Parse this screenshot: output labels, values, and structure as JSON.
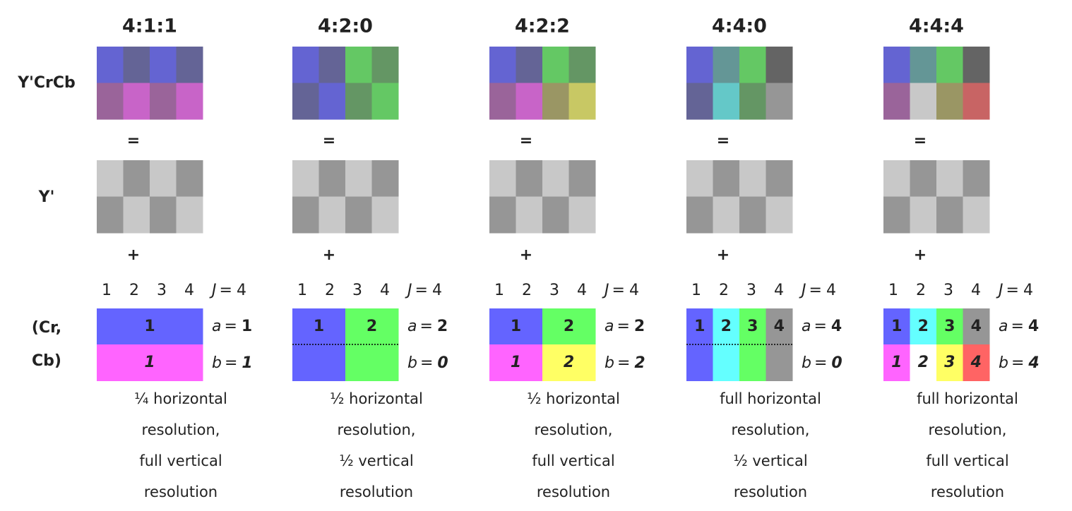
{
  "row_labels": {
    "ycrcb": "Y'CrCb",
    "y": "Y'",
    "crcb": [
      "(Cr,",
      "Cb)"
    ]
  },
  "operators": {
    "equals": "=",
    "plus": "+"
  },
  "columns": [
    {
      "title": "4:1:1",
      "ycrcb_colors": [
        [
          "#6464d2",
          "#646496",
          "#6464d2",
          "#646496"
        ],
        [
          "#9a649a",
          "#c864c8",
          "#9a649a",
          "#c864c8"
        ]
      ],
      "y_colors": [
        [
          "#c8c8c8",
          "#969696",
          "#c8c8c8",
          "#969696"
        ],
        [
          "#969696",
          "#c8c8c8",
          "#969696",
          "#c8c8c8"
        ]
      ],
      "indices": [
        "1",
        "2",
        "3",
        "4"
      ],
      "j": {
        "symbol": "J",
        "value": "4"
      },
      "a": {
        "symbol": "a",
        "value": "1"
      },
      "b": {
        "symbol": "b",
        "value": "1"
      },
      "cr": [
        {
          "label": "1",
          "color": "#6464ff"
        }
      ],
      "cb": [
        {
          "label": "1",
          "color": "#ff64ff"
        }
      ],
      "dotted": false,
      "caption": [
        "¼ horizontal",
        "resolution,",
        "full vertical",
        "resolution"
      ]
    },
    {
      "title": "4:2:0",
      "ycrcb_colors": [
        [
          "#6464d2",
          "#646496",
          "#64c864",
          "#649664"
        ],
        [
          "#646496",
          "#6464d2",
          "#649664",
          "#64c864"
        ]
      ],
      "y_colors": [
        [
          "#c8c8c8",
          "#969696",
          "#c8c8c8",
          "#969696"
        ],
        [
          "#969696",
          "#c8c8c8",
          "#969696",
          "#c8c8c8"
        ]
      ],
      "indices": [
        "1",
        "2",
        "3",
        "4"
      ],
      "j": {
        "symbol": "J",
        "value": "4"
      },
      "a": {
        "symbol": "a",
        "value": "2"
      },
      "b": {
        "symbol": "b",
        "value": "0"
      },
      "cr": [
        {
          "label": "1",
          "color": "#6464ff"
        },
        {
          "label": "2",
          "color": "#64ff64"
        }
      ],
      "cb": [
        {
          "color": "#6464ff"
        },
        {
          "color": "#64ff64"
        }
      ],
      "dotted": true,
      "caption": [
        "½ horizontal",
        "resolution,",
        "½ vertical",
        "resolution"
      ]
    },
    {
      "title": "4:2:2",
      "ycrcb_colors": [
        [
          "#6464d2",
          "#646496",
          "#64c864",
          "#649664"
        ],
        [
          "#9a649a",
          "#c864c8",
          "#9a9664",
          "#c8c864"
        ]
      ],
      "y_colors": [
        [
          "#c8c8c8",
          "#969696",
          "#c8c8c8",
          "#969696"
        ],
        [
          "#969696",
          "#c8c8c8",
          "#969696",
          "#c8c8c8"
        ]
      ],
      "indices": [
        "1",
        "2",
        "3",
        "4"
      ],
      "j": {
        "symbol": "J",
        "value": "4"
      },
      "a": {
        "symbol": "a",
        "value": "2"
      },
      "b": {
        "symbol": "b",
        "value": "2"
      },
      "cr": [
        {
          "label": "1",
          "color": "#6464ff"
        },
        {
          "label": "2",
          "color": "#64ff64"
        }
      ],
      "cb": [
        {
          "label": "1",
          "color": "#ff64ff"
        },
        {
          "label": "2",
          "color": "#ffff64"
        }
      ],
      "dotted": false,
      "caption": [
        "½ horizontal",
        "resolution,",
        "full vertical",
        "resolution"
      ]
    },
    {
      "title": "4:4:0",
      "ycrcb_colors": [
        [
          "#6464d2",
          "#649696",
          "#64c864",
          "#646464"
        ],
        [
          "#646496",
          "#64c8c8",
          "#649664",
          "#969696"
        ]
      ],
      "y_colors": [
        [
          "#c8c8c8",
          "#969696",
          "#c8c8c8",
          "#969696"
        ],
        [
          "#969696",
          "#c8c8c8",
          "#969696",
          "#c8c8c8"
        ]
      ],
      "indices": [
        "1",
        "2",
        "3",
        "4"
      ],
      "j": {
        "symbol": "J",
        "value": "4"
      },
      "a": {
        "symbol": "a",
        "value": "4"
      },
      "b": {
        "symbol": "b",
        "value": "0"
      },
      "cr": [
        {
          "label": "1",
          "color": "#6464ff"
        },
        {
          "label": "2",
          "color": "#64ffff"
        },
        {
          "label": "3",
          "color": "#64ff64"
        },
        {
          "label": "4",
          "color": "#969696"
        }
      ],
      "cb": [
        {
          "color": "#6464ff"
        },
        {
          "color": "#64ffff"
        },
        {
          "color": "#64ff64"
        },
        {
          "color": "#969696"
        }
      ],
      "dotted": true,
      "caption": [
        "full horizontal",
        "resolution,",
        "½ vertical",
        "resolution"
      ]
    },
    {
      "title": "4:4:4",
      "ycrcb_colors": [
        [
          "#6464d2",
          "#649696",
          "#64c864",
          "#646464"
        ],
        [
          "#9a649a",
          "#c8c8c8",
          "#9a9664",
          "#c86464"
        ]
      ],
      "y_colors": [
        [
          "#c8c8c8",
          "#969696",
          "#c8c8c8",
          "#969696"
        ],
        [
          "#969696",
          "#c8c8c8",
          "#969696",
          "#c8c8c8"
        ]
      ],
      "indices": [
        "1",
        "2",
        "3",
        "4"
      ],
      "j": {
        "symbol": "J",
        "value": "4"
      },
      "a": {
        "symbol": "a",
        "value": "4"
      },
      "b": {
        "symbol": "b",
        "value": "4"
      },
      "cr": [
        {
          "label": "1",
          "color": "#6464ff"
        },
        {
          "label": "2",
          "color": "#64ffff"
        },
        {
          "label": "3",
          "color": "#64ff64"
        },
        {
          "label": "4",
          "color": "#969696"
        }
      ],
      "cb": [
        {
          "label": "1",
          "color": "#ff64ff"
        },
        {
          "label": "2",
          "color": "#ffffff"
        },
        {
          "label": "3",
          "color": "#ffff64"
        },
        {
          "label": "4",
          "color": "#ff6464"
        }
      ],
      "dotted": false,
      "caption": [
        "full horizontal",
        "resolution,",
        "full vertical",
        "resolution"
      ]
    }
  ]
}
